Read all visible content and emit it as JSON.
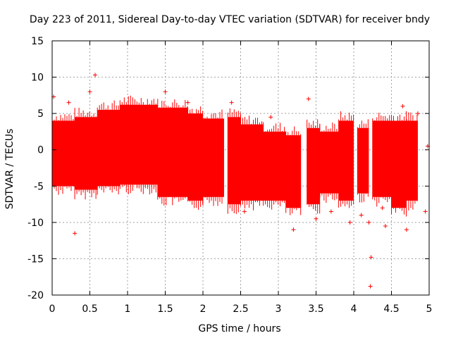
{
  "chart_data": {
    "type": "scatter",
    "title": "Day 223 of 2011, Sidereal Day-to-day VTEC variation (SDTVAR) for receiver bndy",
    "xlabel": "GPS time / hours",
    "ylabel": "SDTVAR / TECUs",
    "xlim": [
      0,
      5
    ],
    "ylim": [
      -20,
      15
    ],
    "xticks": [
      0,
      0.5,
      1,
      1.5,
      2,
      2.5,
      3,
      3.5,
      4,
      4.5,
      5
    ],
    "xtick_labels": [
      "0",
      "0.5",
      "1",
      "1.5",
      "2",
      "2.5",
      "3",
      "3.5",
      "4",
      "4.5",
      "5"
    ],
    "yticks": [
      15,
      10,
      5,
      0,
      -5,
      -10,
      -15,
      -20
    ],
    "ytick_labels": [
      "15",
      "10",
      "5",
      "0",
      "-5",
      "-10",
      "-15",
      "-20"
    ],
    "grid": true,
    "marker": "+",
    "error_bars": true,
    "series_color": "#ff0000",
    "band_segments": [
      {
        "x": [
          0.0,
          0.3
        ],
        "upper": 4.0,
        "lower": -5.0
      },
      {
        "x": [
          0.3,
          0.6
        ],
        "upper": 4.5,
        "lower": -5.5
      },
      {
        "x": [
          0.6,
          0.9
        ],
        "upper": 5.5,
        "lower": -5.0
      },
      {
        "x": [
          0.9,
          1.4
        ],
        "upper": 6.2,
        "lower": -4.8
      },
      {
        "x": [
          1.4,
          1.8
        ],
        "upper": 5.8,
        "lower": -6.5
      },
      {
        "x": [
          1.8,
          2.0
        ],
        "upper": 5.0,
        "lower": -7.0
      },
      {
        "x": [
          2.0,
          2.28
        ],
        "upper": 4.3,
        "lower": -6.5
      },
      {
        "x": [
          2.33,
          2.5
        ],
        "upper": 4.5,
        "lower": -7.5
      },
      {
        "x": [
          2.5,
          2.8
        ],
        "upper": 3.5,
        "lower": -7.0
      },
      {
        "x": [
          2.8,
          3.1
        ],
        "upper": 2.5,
        "lower": -7.0
      },
      {
        "x": [
          3.1,
          3.3
        ],
        "upper": 2.0,
        "lower": -8.0
      },
      {
        "x": [
          3.38,
          3.55
        ],
        "upper": 3.0,
        "lower": -7.5
      },
      {
        "x": [
          3.55,
          3.8
        ],
        "upper": 2.5,
        "lower": -6.0
      },
      {
        "x": [
          3.8,
          4.0
        ],
        "upper": 4.0,
        "lower": -7.0
      },
      {
        "x": [
          4.05,
          4.2
        ],
        "upper": 3.0,
        "lower": -6.0
      },
      {
        "x": [
          4.25,
          4.5
        ],
        "upper": 4.0,
        "lower": -6.5
      },
      {
        "x": [
          4.5,
          4.7
        ],
        "upper": 4.0,
        "lower": -8.0
      },
      {
        "x": [
          4.7,
          4.85
        ],
        "upper": 4.0,
        "lower": -7.0
      }
    ],
    "outliers": [
      {
        "x": 0.57,
        "y": 10.3
      },
      {
        "x": 0.5,
        "y": 8.0
      },
      {
        "x": 0.02,
        "y": 7.3
      },
      {
        "x": 1.5,
        "y": 8.0
      },
      {
        "x": 1.8,
        "y": 6.5
      },
      {
        "x": 0.3,
        "y": -11.5
      },
      {
        "x": 0.22,
        "y": 6.5
      },
      {
        "x": 1.55,
        "y": -6.0
      },
      {
        "x": 2.38,
        "y": 6.5
      },
      {
        "x": 2.55,
        "y": -8.5
      },
      {
        "x": 2.9,
        "y": 4.5
      },
      {
        "x": 3.2,
        "y": -11.0
      },
      {
        "x": 3.4,
        "y": 7.0
      },
      {
        "x": 3.5,
        "y": -9.5
      },
      {
        "x": 3.7,
        "y": -8.5
      },
      {
        "x": 3.95,
        "y": -10.0
      },
      {
        "x": 4.1,
        "y": -9.0
      },
      {
        "x": 4.2,
        "y": -10.0
      },
      {
        "x": 4.23,
        "y": -14.8
      },
      {
        "x": 4.22,
        "y": -18.8
      },
      {
        "x": 4.38,
        "y": -8.0
      },
      {
        "x": 4.42,
        "y": -10.5
      },
      {
        "x": 4.65,
        "y": 6.0
      },
      {
        "x": 4.7,
        "y": -11.0
      },
      {
        "x": 4.85,
        "y": 5.0
      },
      {
        "x": 4.95,
        "y": -8.5
      },
      {
        "x": 4.98,
        "y": 0.5
      }
    ]
  }
}
